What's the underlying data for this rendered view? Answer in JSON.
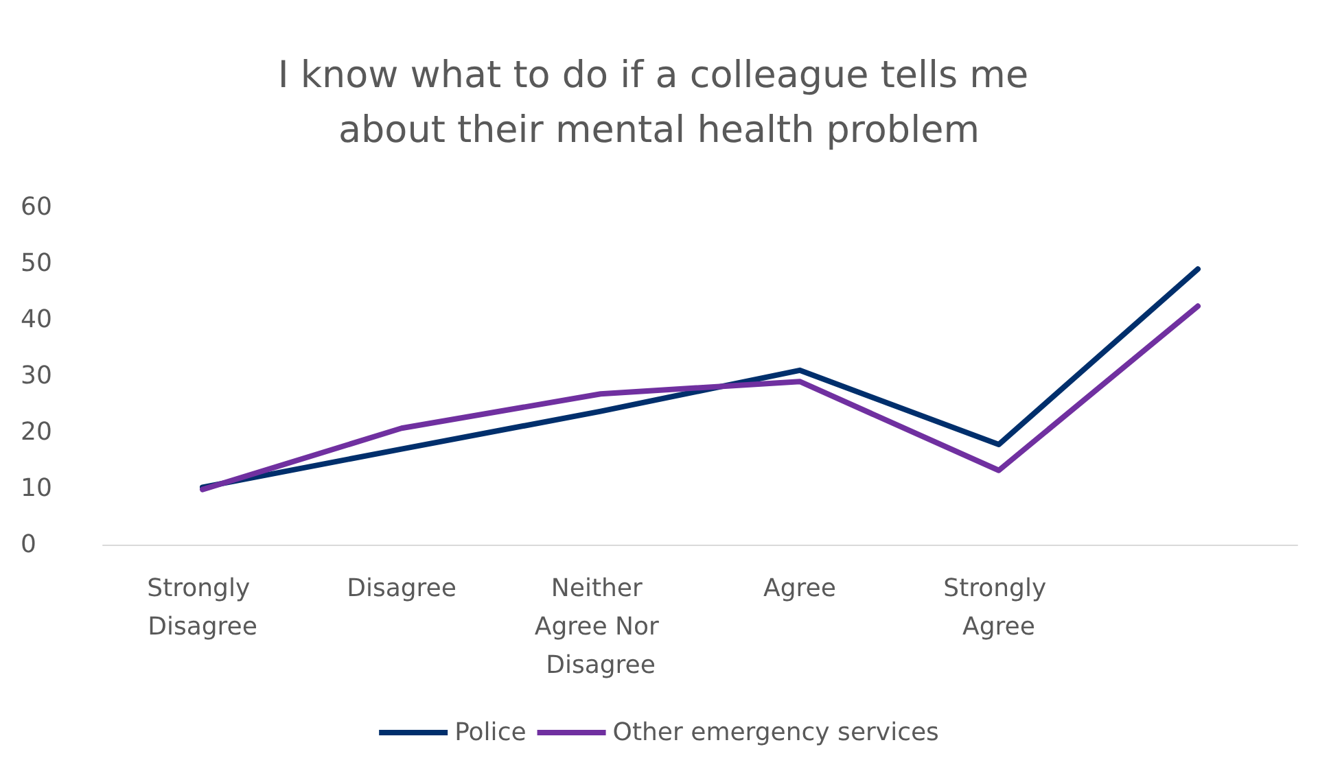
{
  "chart_data": {
    "type": "line",
    "title": "I know what to do if a colleague tells me about their mental health problem",
    "categories": [
      "Strongly Disagree",
      "Disagree",
      "Neither Agree Nor Disagree",
      "Agree",
      "Strongly Agree",
      null
    ],
    "series": [
      {
        "name": "Police",
        "color": "#002f6c",
        "values": [
          10.2,
          17,
          23.7,
          31,
          17.8,
          49
        ]
      },
      {
        "name": "Other emergency services",
        "color": "#7030a0",
        "values": [
          9.8,
          20.7,
          26.8,
          29,
          13.2,
          42.4
        ]
      }
    ],
    "ylim": [
      0,
      60
    ],
    "yticks": [
      0,
      10,
      20,
      30,
      40,
      50,
      60
    ],
    "grid": false,
    "legend": "bottom",
    "marker": "none",
    "line_style": "solid"
  }
}
